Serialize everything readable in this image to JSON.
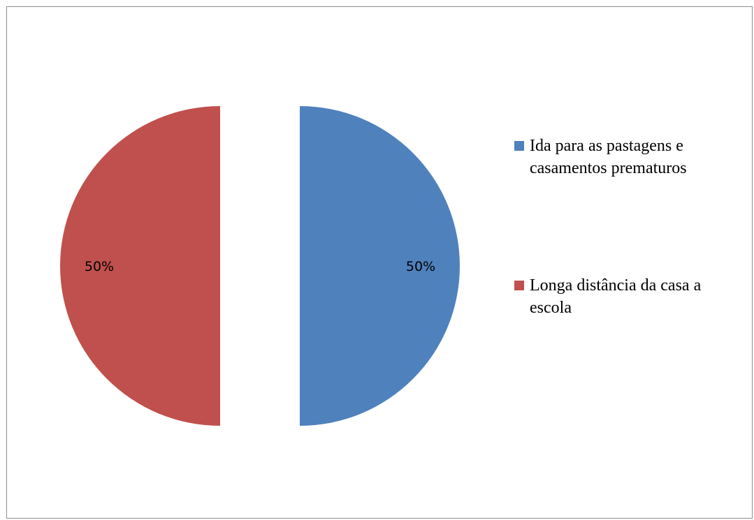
{
  "chart_data": {
    "type": "pie",
    "title": "",
    "slices": [
      {
        "label": "Ida para as pastagens e casamentos prematuros",
        "value": 50,
        "display": "50%",
        "color": "#4f81bd"
      },
      {
        "label": "Longa distância da casa a escola",
        "value": 50,
        "display": "50%",
        "color": "#c0504d"
      }
    ],
    "legend_position": "right",
    "exploded": true
  }
}
